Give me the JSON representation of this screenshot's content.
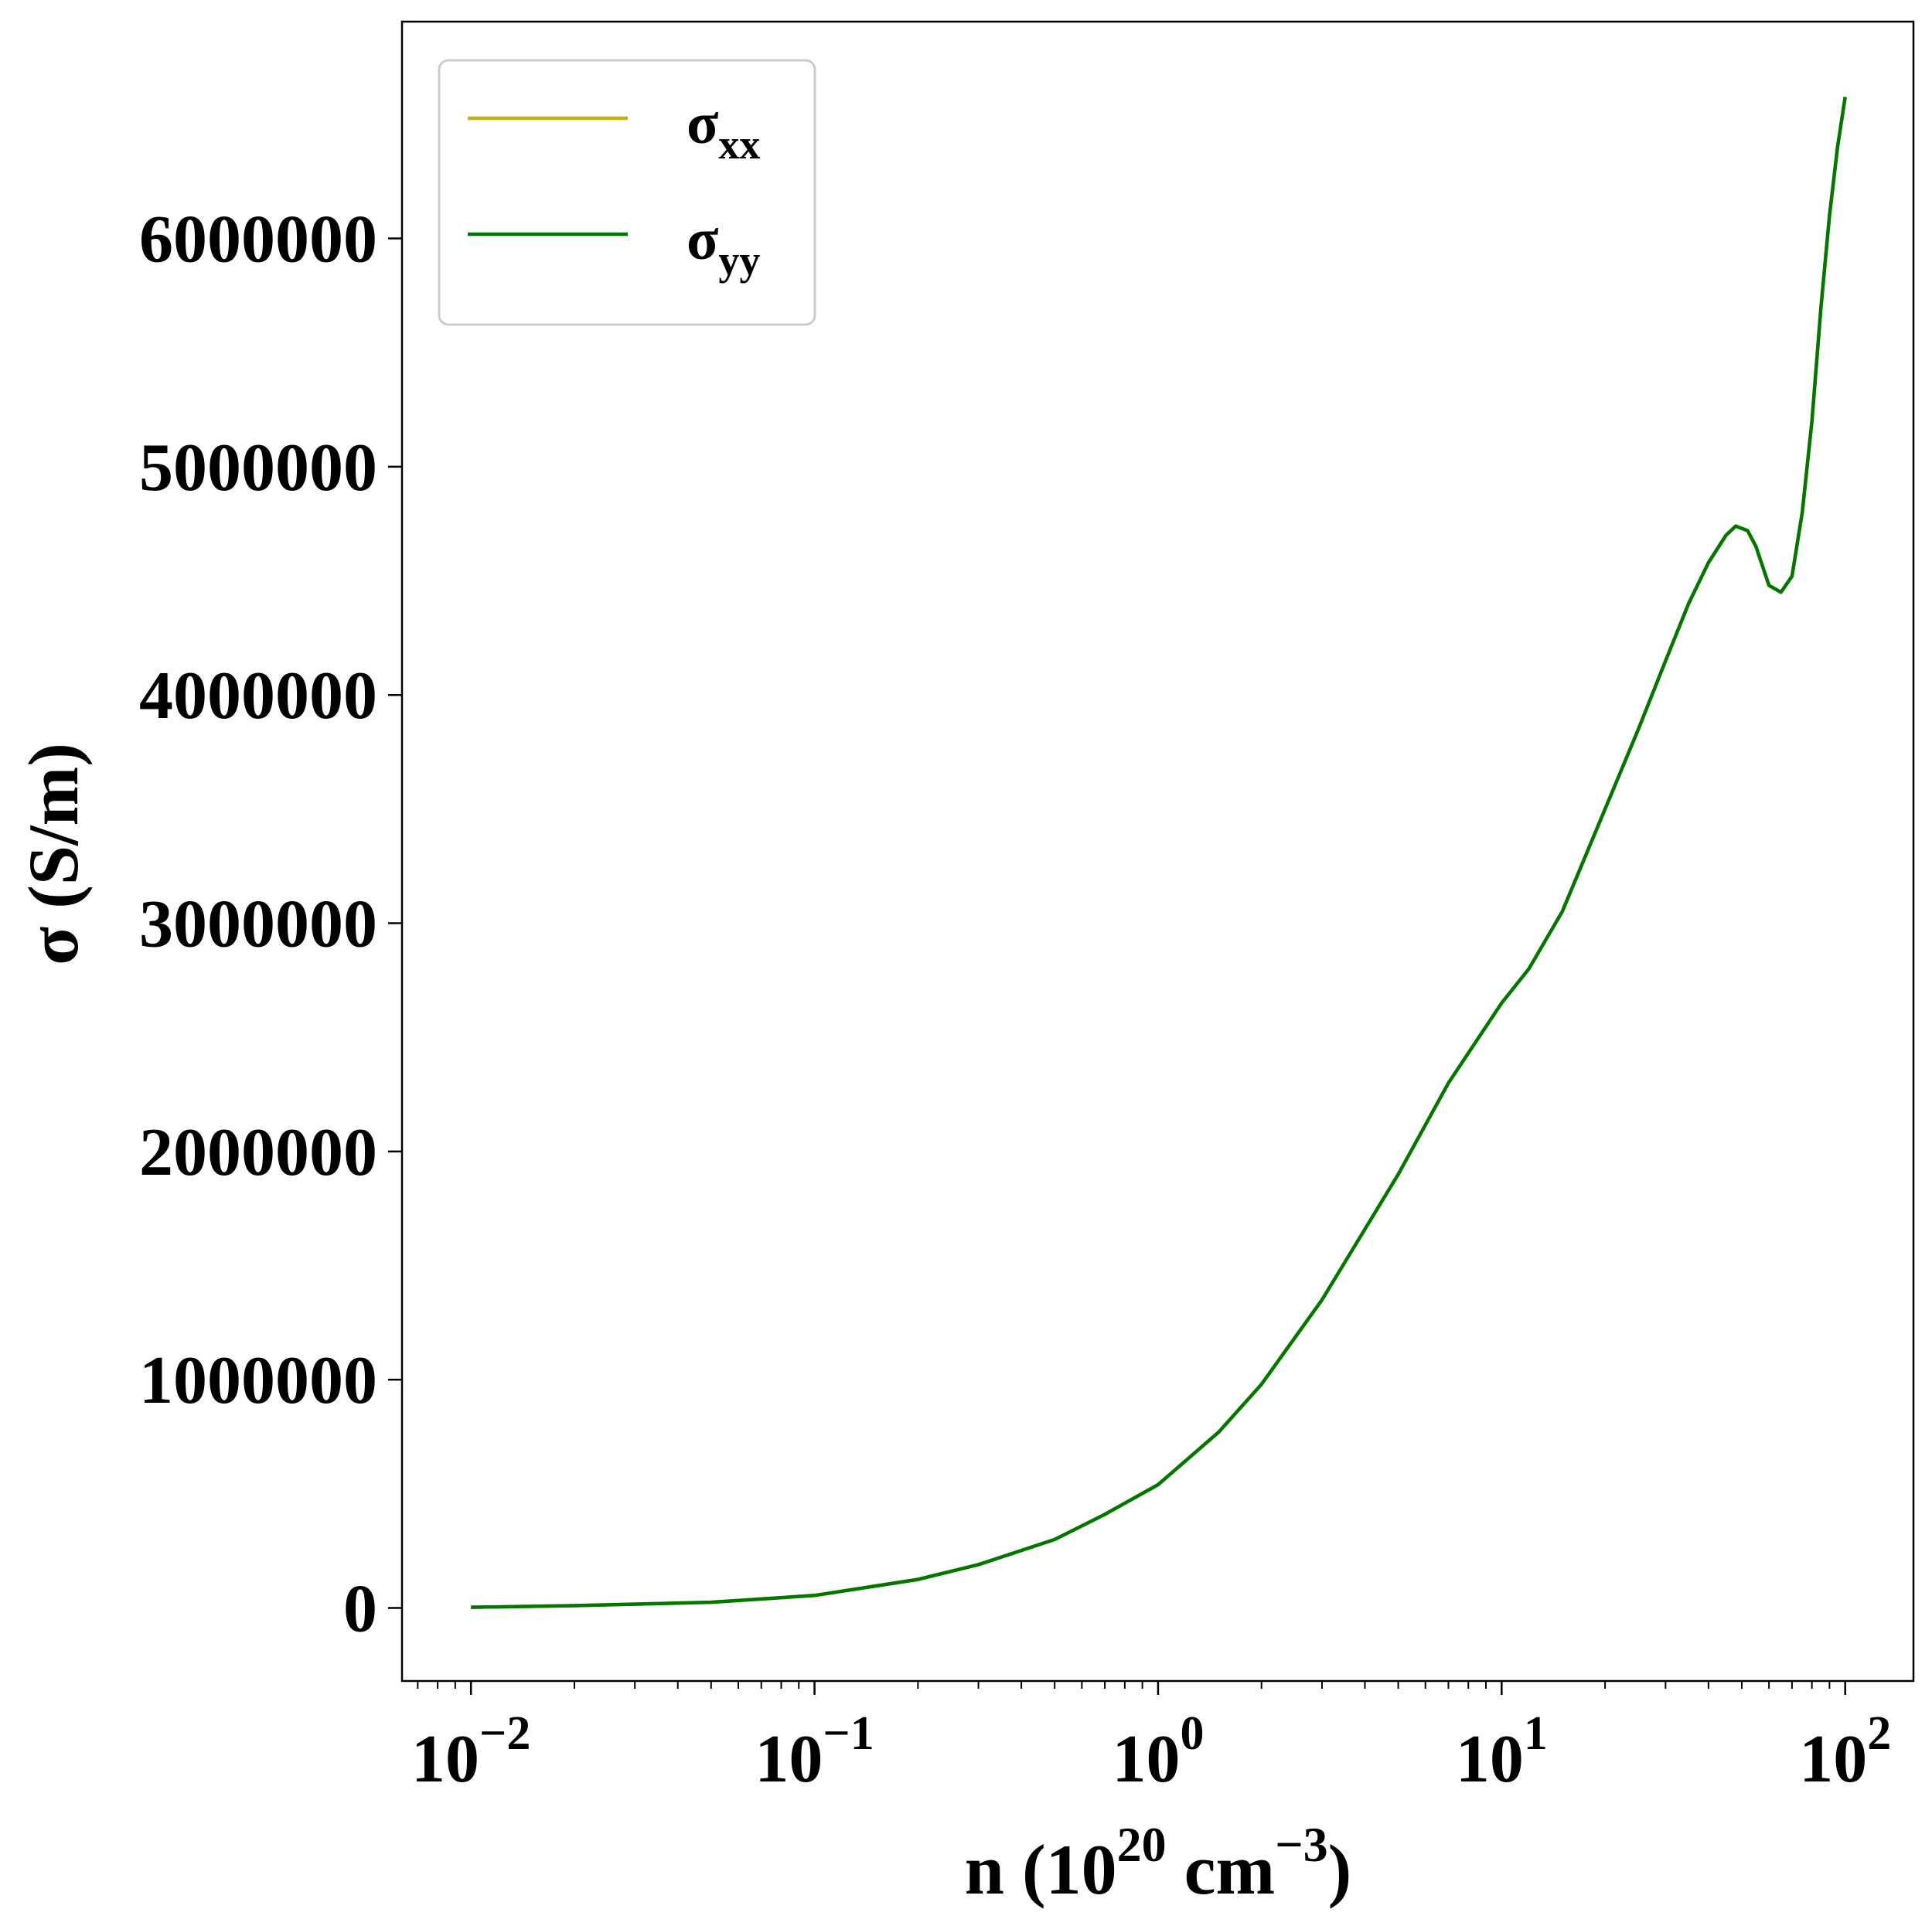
{
  "chart_data": {
    "type": "line",
    "xlabel": {
      "main": "n (10",
      "sup1": "20",
      "mid": " cm",
      "sup2": "−3",
      "end": ")"
    },
    "ylabel": "σ (S/m)",
    "xscale": "log",
    "xlim": [
      0.0063,
      158
    ],
    "ylim": [
      -320000,
      6950000
    ],
    "x_ticks": [
      {
        "value": 0.01,
        "base": "10",
        "exp": "−2"
      },
      {
        "value": 0.1,
        "base": "10",
        "exp": "−1"
      },
      {
        "value": 1,
        "base": "10",
        "exp": "0"
      },
      {
        "value": 10,
        "base": "10",
        "exp": "1"
      },
      {
        "value": 100,
        "base": "10",
        "exp": "2"
      }
    ],
    "y_ticks": [
      {
        "value": 0,
        "label": "0"
      },
      {
        "value": 1000000,
        "label": "1000000"
      },
      {
        "value": 2000000,
        "label": "2000000"
      },
      {
        "value": 3000000,
        "label": "3000000"
      },
      {
        "value": 4000000,
        "label": "4000000"
      },
      {
        "value": 5000000,
        "label": "5000000"
      },
      {
        "value": 6000000,
        "label": "6000000"
      }
    ],
    "grid": false,
    "legend": {
      "position": "top-left"
    },
    "series": [
      {
        "name_main": "σ",
        "name_sub": "xx",
        "color": "#c8b400",
        "x": [
          0.01,
          0.02,
          0.05,
          0.1,
          0.2,
          0.3,
          0.5,
          0.7,
          1,
          1.5,
          2,
          3,
          5,
          7,
          10,
          12,
          15,
          20,
          25,
          30,
          35,
          40,
          45,
          48,
          52,
          55,
          60,
          65,
          70,
          75,
          80,
          85,
          90,
          95,
          100
        ],
        "y": [
          3000,
          10000,
          25000,
          55000,
          125000,
          190000,
          300000,
          410000,
          540000,
          770000,
          980000,
          1350000,
          1900000,
          2300000,
          2650000,
          2800000,
          3050000,
          3500000,
          3850000,
          4150000,
          4400000,
          4580000,
          4700000,
          4740000,
          4720000,
          4650000,
          4480000,
          4450000,
          4520000,
          4800000,
          5200000,
          5700000,
          6100000,
          6400000,
          6620000
        ]
      },
      {
        "name_main": "σ",
        "name_sub": "yy",
        "color": "#007800",
        "x": [
          0.01,
          0.02,
          0.05,
          0.1,
          0.2,
          0.3,
          0.5,
          0.7,
          1,
          1.5,
          2,
          3,
          5,
          7,
          10,
          12,
          15,
          20,
          25,
          30,
          35,
          40,
          45,
          48,
          52,
          55,
          60,
          65,
          70,
          75,
          80,
          85,
          90,
          95,
          100
        ],
        "y": [
          3000,
          10000,
          25000,
          55000,
          125000,
          190000,
          300000,
          410000,
          540000,
          770000,
          980000,
          1350000,
          1900000,
          2300000,
          2650000,
          2800000,
          3050000,
          3500000,
          3850000,
          4150000,
          4400000,
          4580000,
          4700000,
          4740000,
          4720000,
          4650000,
          4480000,
          4450000,
          4520000,
          4800000,
          5200000,
          5700000,
          6100000,
          6400000,
          6620000
        ]
      }
    ]
  }
}
